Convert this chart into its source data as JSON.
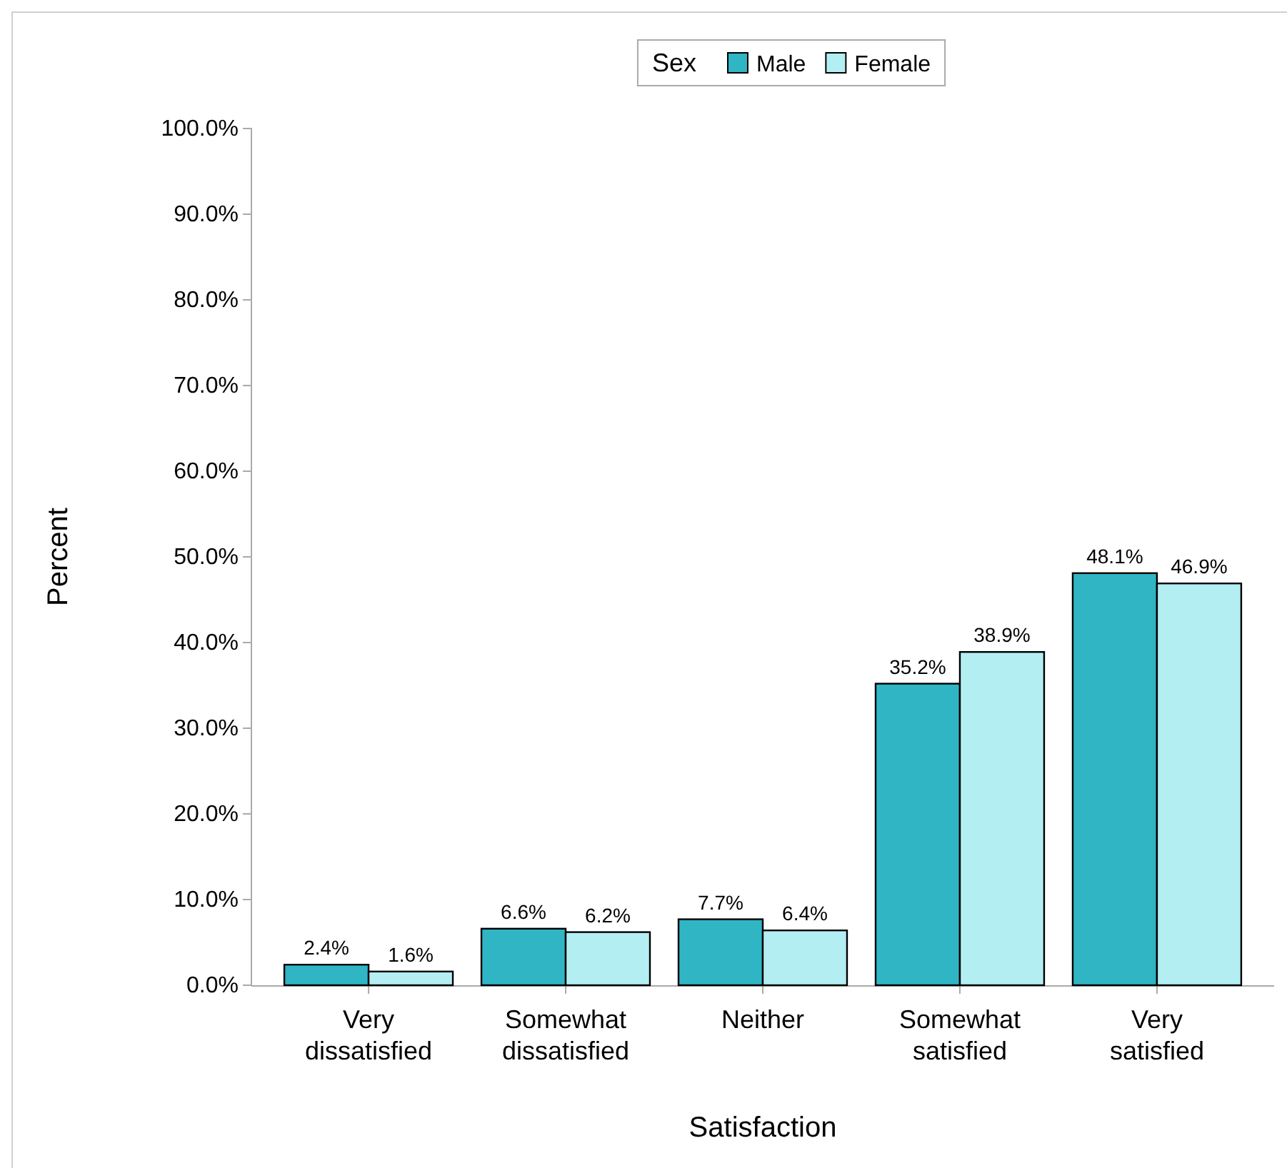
{
  "chart_data": {
    "type": "bar",
    "xlabel": "Satisfaction",
    "ylabel": "Percent",
    "legend_title": "Sex",
    "legend": "top",
    "categories": [
      "Very dissatisfied",
      "Somewhat dissatisfied",
      "Neither",
      "Somewhat satisfied",
      "Very satisfied"
    ],
    "series": [
      {
        "name": "Male",
        "color": "#2fb5c4",
        "values": [
          2.4,
          6.6,
          7.7,
          35.2,
          48.1
        ],
        "value_labels": [
          "2.4%",
          "6.6%",
          "7.7%",
          "35.2%",
          "48.1%"
        ]
      },
      {
        "name": "Female",
        "color": "#b3eef2",
        "values": [
          1.6,
          6.2,
          6.4,
          38.9,
          46.9
        ],
        "value_labels": [
          "1.6%",
          "6.2%",
          "6.4%",
          "38.9%",
          "46.9%"
        ]
      }
    ],
    "ylim": [
      0,
      100
    ],
    "yticks": [
      {
        "value": 0,
        "label": "0.0%"
      },
      {
        "value": 10,
        "label": "10.0%"
      },
      {
        "value": 20,
        "label": "20.0%"
      },
      {
        "value": 30,
        "label": "30.0%"
      },
      {
        "value": 40,
        "label": "40.0%"
      },
      {
        "value": 50,
        "label": "50.0%"
      },
      {
        "value": 60,
        "label": "60.0%"
      },
      {
        "value": 70,
        "label": "70.0%"
      },
      {
        "value": 80,
        "label": "80.0%"
      },
      {
        "value": 90,
        "label": "90.0%"
      },
      {
        "value": 100,
        "label": "100.0%"
      }
    ],
    "grid": false
  }
}
